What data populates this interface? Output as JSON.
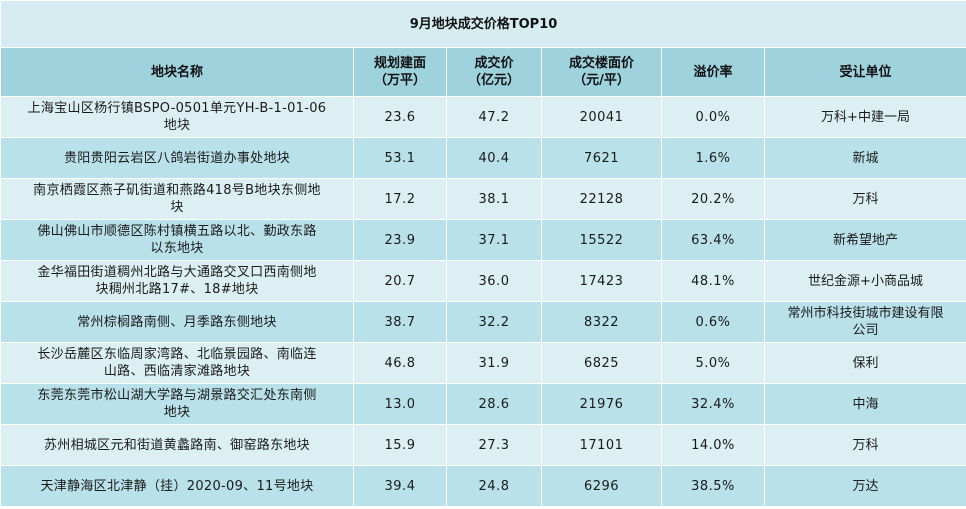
{
  "title": "9月地块成交价格TOP10",
  "headers": {
    "name": "地块名称",
    "area_l1": "规划建面",
    "area_l2": "（万平）",
    "price_l1": "成交价",
    "price_l2": "（亿元）",
    "floor_l1": "成交楼面价",
    "floor_l2": "（元/平）",
    "premium": "溢价率",
    "buyer": "受让单位"
  },
  "rows": [
    {
      "name1": "上海宝山区杨行镇BSPO-0501单元YH-B-1-01-06",
      "name2": "地块",
      "area": "23.6",
      "price": "47.2",
      "floor": "20041",
      "premium": "0.0%",
      "buyer1": "万科+中建一局",
      "buyer2": ""
    },
    {
      "name1": "贵阳贵阳云岩区八鸽岩街道办事处地块",
      "name2": "",
      "area": "53.1",
      "price": "40.4",
      "floor": "7621",
      "premium": "1.6%",
      "buyer1": "新城",
      "buyer2": ""
    },
    {
      "name1": "南京栖霞区燕子矶街道和燕路418号B地块东侧地",
      "name2": "块",
      "area": "17.2",
      "price": "38.1",
      "floor": "22128",
      "premium": "20.2%",
      "buyer1": "万科",
      "buyer2": ""
    },
    {
      "name1": "佛山佛山市顺德区陈村镇横五路以北、勤政东路",
      "name2": "以东地块",
      "area": "23.9",
      "price": "37.1",
      "floor": "15522",
      "premium": "63.4%",
      "buyer1": "新希望地产",
      "buyer2": ""
    },
    {
      "name1": "金华福田街道稠州北路与大通路交叉口西南侧地",
      "name2": "块稠州北路17#、18#地块",
      "area": "20.7",
      "price": "36.0",
      "floor": "17423",
      "premium": "48.1%",
      "buyer1": "世纪金源+小商品城",
      "buyer2": ""
    },
    {
      "name1": "常州棕榈路南侧、月季路东侧地块",
      "name2": "",
      "area": "38.7",
      "price": "32.2",
      "floor": "8322",
      "premium": "0.6%",
      "buyer1": "常州市科技街城市建设有限",
      "buyer2": "公司"
    },
    {
      "name1": "长沙岳麓区东临周家湾路、北临景园路、南临连",
      "name2": "山路、西临清家滩路地块",
      "area": "46.8",
      "price": "31.9",
      "floor": "6825",
      "premium": "5.0%",
      "buyer1": "保利",
      "buyer2": ""
    },
    {
      "name1": "东莞东莞市松山湖大学路与湖景路交汇处东南侧",
      "name2": "地块",
      "area": "13.0",
      "price": "28.6",
      "floor": "21976",
      "premium": "32.4%",
      "buyer1": "中海",
      "buyer2": ""
    },
    {
      "name1": "苏州相城区元和街道黄蠡路南、御窑路东地块",
      "name2": "",
      "area": "15.9",
      "price": "27.3",
      "floor": "17101",
      "premium": "14.0%",
      "buyer1": "万科",
      "buyer2": ""
    },
    {
      "name1": "天津静海区北津静（挂）2020-09、11号地块",
      "name2": "",
      "area": "39.4",
      "price": "24.8",
      "floor": "6296",
      "premium": "38.5%",
      "buyer1": "万达",
      "buyer2": ""
    }
  ]
}
